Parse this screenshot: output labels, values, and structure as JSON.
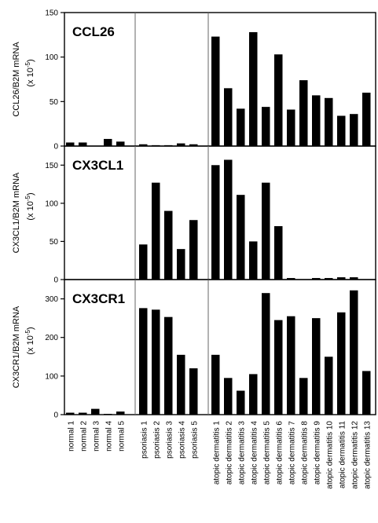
{
  "chart_data": [
    {
      "type": "bar",
      "title": "CCL26",
      "ylabel": "CCL26/B2M mRNA",
      "yunit_prefix": "(x 10",
      "yunit_exp": "-5",
      "yunit_suffix": ")",
      "ylim": [
        0,
        150
      ],
      "yticks": [
        "0",
        "50",
        "100",
        "150"
      ],
      "groups": [
        {
          "name": "normal",
          "values": [
            4,
            4,
            0,
            8,
            5
          ]
        },
        {
          "name": "psoriasis",
          "values": [
            2,
            1,
            1,
            3,
            2
          ]
        },
        {
          "name": "atopic dermatitis",
          "values": [
            123,
            65,
            42,
            128,
            44,
            103,
            41,
            74,
            57,
            54,
            34,
            36,
            60
          ]
        }
      ]
    },
    {
      "type": "bar",
      "title": "CX3CL1",
      "ylabel": "CX3CL1/B2M mRNA",
      "yunit_prefix": "(x 10",
      "yunit_exp": "-5",
      "yunit_suffix": ")",
      "ylim": [
        0,
        175
      ],
      "yticks": [
        "0",
        "50",
        "100",
        "150"
      ],
      "groups": [
        {
          "name": "normal",
          "values": [
            0,
            0,
            0,
            0,
            0
          ]
        },
        {
          "name": "psoriasis",
          "values": [
            46,
            127,
            90,
            40,
            78
          ]
        },
        {
          "name": "atopic dermatitis",
          "values": [
            150,
            157,
            111,
            50,
            127,
            70,
            2,
            0,
            2,
            2,
            3,
            3,
            0
          ]
        }
      ]
    },
    {
      "type": "bar",
      "title": "CX3CR1",
      "ylabel": "CX3CR1/B2M mRNA",
      "yunit_prefix": "(x 10",
      "yunit_exp": "-5",
      "yunit_suffix": ")",
      "ylim": [
        0,
        350
      ],
      "yticks": [
        "0",
        "100",
        "200",
        "300"
      ],
      "groups": [
        {
          "name": "normal",
          "values": [
            5,
            5,
            15,
            2,
            8
          ]
        },
        {
          "name": "psoriasis",
          "values": [
            276,
            272,
            253,
            155,
            120
          ]
        },
        {
          "name": "atopic dermatitis",
          "values": [
            155,
            95,
            62,
            105,
            315,
            245,
            255,
            95,
            250,
            150,
            265,
            322,
            113
          ]
        }
      ]
    }
  ],
  "categories": [
    "normal 1",
    "normal 2",
    "normal 3",
    "normal 4",
    "normal 5",
    "psoriasis 1",
    "psoriasis 2",
    "psoriasis 3",
    "psoriasis 4",
    "psoriasis 5",
    "atopic dermatitis 1",
    "atopic dermatitis 2",
    "atopic dermatitis 3",
    "atopic dermatitis 4",
    "atopic dermatitis 5",
    "atopic dermatitis 6",
    "atopic dermatitis 7",
    "atopic dermatitis 8",
    "atopic dermatitis 9",
    "atopic dermatitis 10",
    "atopic dermatitis 11",
    "atopic dermatitis 12",
    "atopic dermatitis 13"
  ],
  "colors": {
    "bar": "#000000",
    "axis": "#000000",
    "divider": "#666666"
  }
}
